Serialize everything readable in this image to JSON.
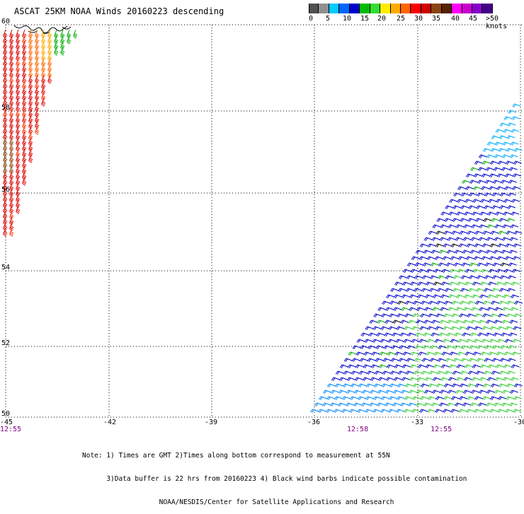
{
  "title": "ASCAT 25KM NOAA Winds 20160223 descending",
  "colorbar": {
    "colors": [
      "#505050",
      "#909090",
      "#00ccff",
      "#0066ff",
      "#0000cc",
      "#00bb00",
      "#33dd33",
      "#ffee00",
      "#ffaa00",
      "#ff6600",
      "#ff0000",
      "#cc0000",
      "#8b4513",
      "#552200",
      "#ff00ff",
      "#cc00cc",
      "#8800cc",
      "#440088"
    ],
    "labels": [
      "0",
      "5",
      "10",
      "15",
      "20",
      "25",
      "30",
      "35",
      "40",
      "45",
      ">50 knots"
    ]
  },
  "map": {
    "lat_labels": [
      "60",
      "58",
      "56",
      "54",
      "52",
      "50"
    ],
    "lon_labels": [
      "-45",
      "-42",
      "-39",
      "-36",
      "-33",
      "-30"
    ],
    "time_labels": [
      "12:55",
      "12:58",
      "12:55"
    ]
  },
  "notes": [
    "Note: 1) Times are GMT 2)Times along bottom correspond to measurement at 55N",
    "      3)Data buffer is 22 hrs from 20160223 4) Black wind barbs indicate possible contamination",
    "                   NOAA/NESDIS/Center for Satellite Applications and Research"
  ]
}
